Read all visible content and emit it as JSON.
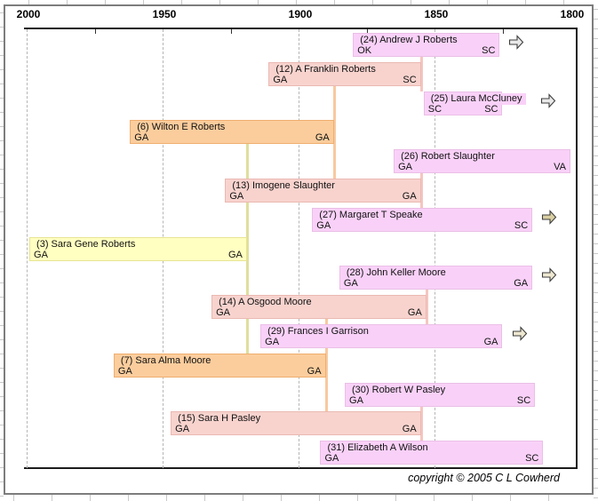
{
  "copyright": "copyright © 2005 C L Cowherd",
  "chart_data": {
    "type": "timeline-gantt",
    "description": "Genealogy lifespan timeline, x-axis years reversed (2000 left to 1800 right); each bar = one person's life from birth (right) to death/present (left); vertical connectors join parents to a child's birth year.",
    "axis": {
      "unit": "year",
      "min": 1800,
      "max": 2000,
      "reversed": true,
      "major_ticks": [
        2000,
        1950,
        1900,
        1850,
        1800
      ],
      "minor_ticks": [
        1975,
        1925,
        1875,
        1825
      ],
      "gridlines_dashed_at": [
        2000,
        1950,
        1900,
        1850
      ]
    },
    "palette": {
      "violet": {
        "fill": "#f9d1f8",
        "border": "#eabfe6",
        "line": "#f3c3ef"
      },
      "pink": {
        "fill": "#f8d3ce",
        "border": "#eab9b2",
        "line": "#f5c6c0"
      },
      "orange": {
        "fill": "#fbcd9d",
        "border": "#efae6f",
        "line": "#f8c9a0"
      },
      "yellow": {
        "fill": "#ffffc1",
        "border": "#e7e493",
        "line": "#dfdf9d"
      }
    },
    "people": [
      {
        "label": "(24) Andrew J Roberts",
        "end_place": "OK",
        "birth_place": "SC",
        "end_year": 1880,
        "birth_year": 1826,
        "color": "violet",
        "arrow": true,
        "arrow_fill": "#e9e9e9",
        "arrow_gap": 10
      },
      {
        "label": "(12) A Franklin Roberts",
        "end_place": "GA",
        "birth_place": "SC",
        "end_year": 1911,
        "birth_year": 1855,
        "color": "pink",
        "arrow": false
      },
      {
        "label": "(25) Laura McCluney",
        "end_place": "SC",
        "birth_place": "SC",
        "end_year": 1854,
        "birth_year": 1825,
        "color": "violet",
        "arrow": true,
        "arrow_fill": "#e9e9e9",
        "arrow_gap": 42
      },
      {
        "label": "(6) Wilton E Roberts",
        "end_place": "GA",
        "birth_place": "GA",
        "end_year": 1962,
        "birth_year": 1887,
        "color": "orange",
        "arrow": false
      },
      {
        "label": "(26) Robert Slaughter",
        "end_place": "GA",
        "birth_place": "VA",
        "end_year": 1865,
        "birth_year": 1800,
        "color": "violet",
        "arrow": false
      },
      {
        "label": "(13) Imogene Slaughter",
        "end_place": "GA",
        "birth_place": "GA",
        "end_year": 1927,
        "birth_year": 1855,
        "color": "pink",
        "arrow": false
      },
      {
        "label": "(27) Margaret T Speake",
        "end_place": "GA",
        "birth_place": "SC",
        "end_year": 1895,
        "birth_year": 1814,
        "color": "violet",
        "arrow": true,
        "arrow_fill": "#d9cfa2",
        "arrow_gap": 10
      },
      {
        "label": "(3) Sara Gene Roberts",
        "end_place": "GA",
        "birth_place": "GA",
        "end_year": 1999,
        "birth_year": 1919,
        "color": "yellow",
        "arrow": false
      },
      {
        "label": "(28) John Keller Moore",
        "end_place": "GA",
        "birth_place": "GA",
        "end_year": 1885,
        "birth_year": 1814,
        "color": "violet",
        "arrow": true,
        "arrow_fill": "#eee8d1",
        "arrow_gap": 10
      },
      {
        "label": "(14) A Osgood Moore",
        "end_place": "GA",
        "birth_place": "GA",
        "end_year": 1932,
        "birth_year": 1853,
        "color": "pink",
        "arrow": false
      },
      {
        "label": "(29) Frances I Garrison",
        "end_place": "GA",
        "birth_place": "GA",
        "end_year": 1914,
        "birth_year": 1825,
        "color": "violet",
        "arrow": true,
        "arrow_fill": "#eee8d1",
        "arrow_gap": 10
      },
      {
        "label": "(7) Sara Alma Moore",
        "end_place": "GA",
        "birth_place": "GA",
        "end_year": 1968,
        "birth_year": 1890,
        "color": "orange",
        "arrow": false
      },
      {
        "label": "(30) Robert W Pasley",
        "end_place": "GA",
        "birth_place": "SC",
        "end_year": 1883,
        "birth_year": 1813,
        "color": "violet",
        "arrow": false
      },
      {
        "label": "(15) Sara H Pasley",
        "end_place": "GA",
        "birth_place": "GA",
        "end_year": 1947,
        "birth_year": 1855,
        "color": "pink",
        "arrow": false
      },
      {
        "label": "(31) Elizabeth A Wilson",
        "end_place": "GA",
        "birth_place": "SC",
        "end_year": 1892,
        "birth_year": 1810,
        "color": "violet",
        "arrow": false
      }
    ],
    "connectors": [
      {
        "child_label": "(12)",
        "birth_year": 1855,
        "from_row": 0,
        "to_row": 2,
        "color": "pink"
      },
      {
        "child_label": "(6)",
        "birth_year": 1887,
        "from_row": 1,
        "to_row": 5,
        "color": "orange"
      },
      {
        "child_label": "(13)",
        "birth_year": 1855,
        "from_row": 4,
        "to_row": 6,
        "color": "pink"
      },
      {
        "child_label": "(3)",
        "birth_year": 1919,
        "from_row": 3,
        "to_row": 11,
        "color": "yellow"
      },
      {
        "child_label": "(14)",
        "birth_year": 1853,
        "from_row": 8,
        "to_row": 10,
        "color": "pink"
      },
      {
        "child_label": "(7)",
        "birth_year": 1890,
        "from_row": 9,
        "to_row": 13,
        "color": "orange"
      },
      {
        "child_label": "(15)",
        "birth_year": 1855,
        "from_row": 12,
        "to_row": 14,
        "color": "pink"
      }
    ]
  }
}
